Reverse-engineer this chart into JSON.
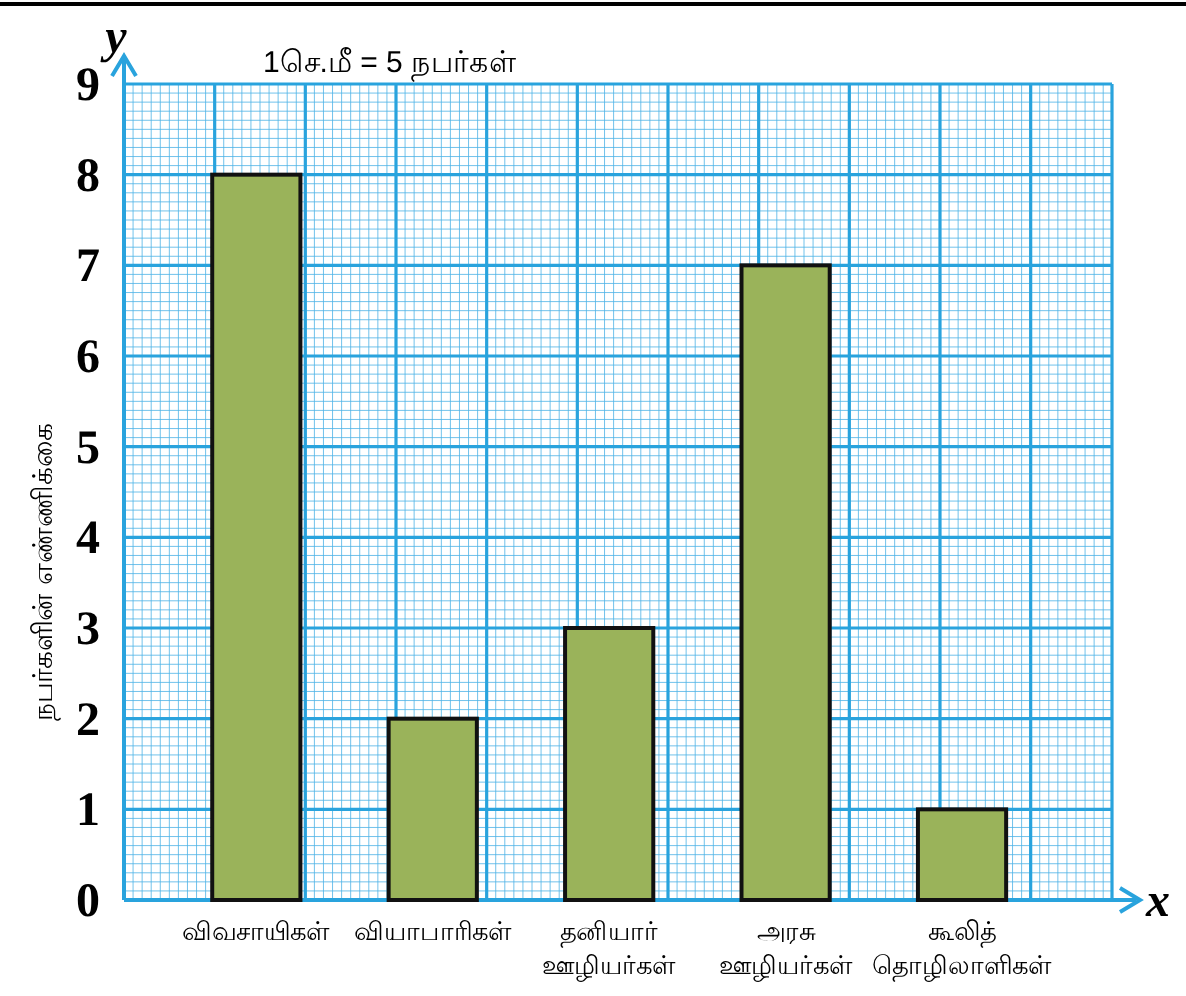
{
  "chart_data": {
    "type": "bar",
    "title": "1செ.மீ = 5 நபர்கள்",
    "xlabel": "x",
    "ylabel": "நபர்களின் எண்ணிக்கை",
    "annotations": [
      "y"
    ],
    "categories": [
      "விவசாயிகள்",
      "வியாபாரிகள்",
      "தனியார்\nஊழியர்கள்",
      "அரசு\nஊழியர்கள்",
      "கூலித்\nதொழிலாளிகள்"
    ],
    "values": [
      8,
      2,
      3,
      7,
      1
    ],
    "color": "#9ab35a",
    "ylim": [
      0,
      9
    ],
    "yticks": [
      0,
      1,
      2,
      3,
      4,
      5,
      6,
      7,
      8,
      9
    ],
    "grid": true
  }
}
